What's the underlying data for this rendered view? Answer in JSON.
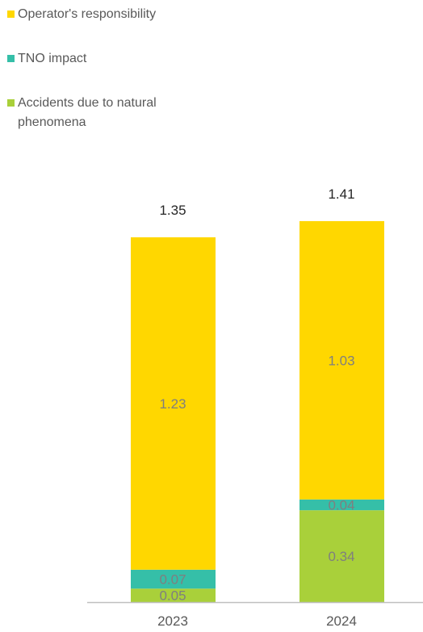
{
  "chart_data": {
    "type": "bar",
    "stacked": true,
    "categories": [
      "2023",
      "2024"
    ],
    "series": [
      {
        "name": "Accidents due to natural phenomena",
        "color": "#A9D03A",
        "values": [
          0.05,
          0.34
        ],
        "label_color": "#7F7F7F"
      },
      {
        "name": "TNO impact",
        "color": "#35BFA8",
        "values": [
          0.07,
          0.04
        ],
        "label_color": "#7F7F7F"
      },
      {
        "name": "Operator's responsibility",
        "color": "#FFD700",
        "values": [
          1.23,
          1.03
        ],
        "label_color": "#7F7F7F"
      }
    ],
    "totals": [
      1.35,
      1.41
    ],
    "total_labels": [
      "1.35",
      "1.41"
    ],
    "value_labels": [
      [
        "0.05",
        "0.34"
      ],
      [
        "0.07",
        "0.04"
      ],
      [
        "1.23",
        "1.03"
      ]
    ],
    "legend_position": "top-left",
    "grid": false,
    "axis_color": "#BFBFBF"
  },
  "legend": {
    "items": [
      {
        "label": "Operator's responsibility",
        "color": "#FFD700"
      },
      {
        "label": "TNO impact",
        "color": "#35BFA8"
      },
      {
        "label": "Accidents due to natural phenomena",
        "color": "#A9D03A"
      }
    ]
  }
}
